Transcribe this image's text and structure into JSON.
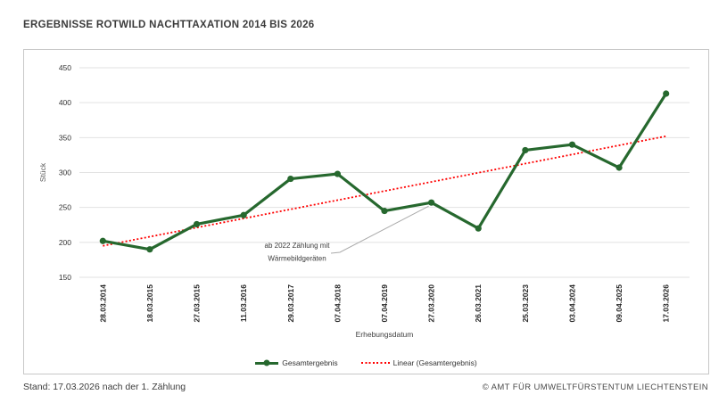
{
  "title": "ERGEBNISSE ROTWILD NACHTTAXATION 2014 BIS 2026",
  "legend": {
    "series": "Gesamtergebnis",
    "trend": "Linear (Gesamtergebnis)"
  },
  "footer": {
    "left": "Stand: 17.03.2026 nach der 1. Zählung",
    "right": "© AMT FÜR UMWELTFÜRSTENTUM LIECHTENSTEIN"
  },
  "chart_data": {
    "type": "line",
    "title": "ERGEBNISSE ROTWILD NACHTTAXATION 2014 BIS 2026",
    "xlabel": "Erhebungsdatum",
    "ylabel": "Stück",
    "ylim": [
      150,
      450
    ],
    "ytick_step": 50,
    "grid": true,
    "legend_position": "bottom",
    "categories": [
      "28.03.2014",
      "18.03.2015",
      "27.03.2015",
      "11.03.2016",
      "29.03.2017",
      "07.04.2018",
      "07.04.2019",
      "27.03.2020",
      "26.03.2021",
      "25.03.2023",
      "03.04.2024",
      "09.04.2025",
      "17.03.2026"
    ],
    "series": [
      {
        "name": "Gesamtergebnis",
        "color": "#26682e",
        "values": [
          202,
          190,
          226,
          239,
          291,
          298,
          245,
          257,
          220,
          332,
          340,
          307,
          413
        ]
      }
    ],
    "trendline": {
      "name": "Linear (Gesamtergebnis)",
      "color": "#ff0000",
      "start_value": 195,
      "end_value": 352
    },
    "annotation": {
      "text_lines": [
        "ab 2022 Zählung mit",
        "Wärmebildgeräten"
      ],
      "points_to_category": "27.03.2020"
    },
    "colors": {
      "grid": "#e2e2e2",
      "leader": "#ababab",
      "y_tick_text": "#333333",
      "x_tick_text": "#262626",
      "axis_title_text": "#595959"
    }
  }
}
